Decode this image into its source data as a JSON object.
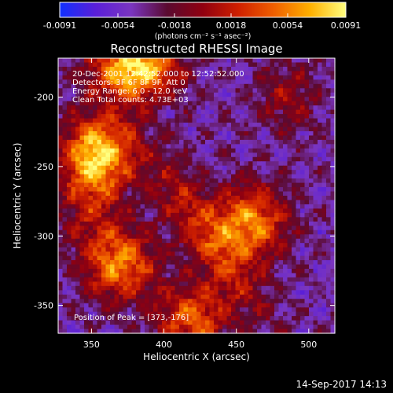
{
  "chart_data": {
    "type": "heatmap",
    "title": "Reconstructed RHESSI Image",
    "xlabel": "Heliocentric X (arcsec)",
    "ylabel": "Heliocentric Y (arcsec)",
    "xlim": [
      327,
      518
    ],
    "ylim": [
      -370,
      -172
    ],
    "x_ticks": [
      350,
      400,
      450,
      500
    ],
    "y_ticks": [
      -200,
      -250,
      -300,
      -350
    ],
    "colorbar": {
      "min": -0.0091,
      "max": 0.0091,
      "ticks": [
        "-0.0091",
        "-0.0054",
        "-0.0018",
        "0.0018",
        "0.0054",
        "0.0091"
      ],
      "unit_label": "(photons cm⁻² s⁻¹ asec⁻²)",
      "colors": [
        "#1030ff",
        "#5a1fd8",
        "#7a35c0",
        "#5a0a30",
        "#900010",
        "#d02000",
        "#f06000",
        "#ffb000",
        "#ffff80"
      ]
    },
    "annotations": {
      "time": "20-Dec-2001 12:42:52.000 to 12:52:52.000",
      "detectors": "Detectors: 3F 6F 8F 9F, Att 0",
      "energy": "Energy Range: 6.0 - 12.0 keV",
      "algorithm": "Clean    Total counts: 4.73E+03",
      "peak": "Position of Peak = [373,-176]"
    },
    "sources": [
      {
        "x": 380,
        "y": -180,
        "peak": 0.0091
      },
      {
        "x": 355,
        "y": -240,
        "peak": 0.006
      },
      {
        "x": 460,
        "y": -290,
        "peak": 0.0058
      },
      {
        "x": 370,
        "y": -320,
        "peak": 0.005
      },
      {
        "x": 420,
        "y": -360,
        "peak": 0.004
      }
    ]
  },
  "footer": {
    "timestamp": "14-Sep-2017 14:13"
  }
}
